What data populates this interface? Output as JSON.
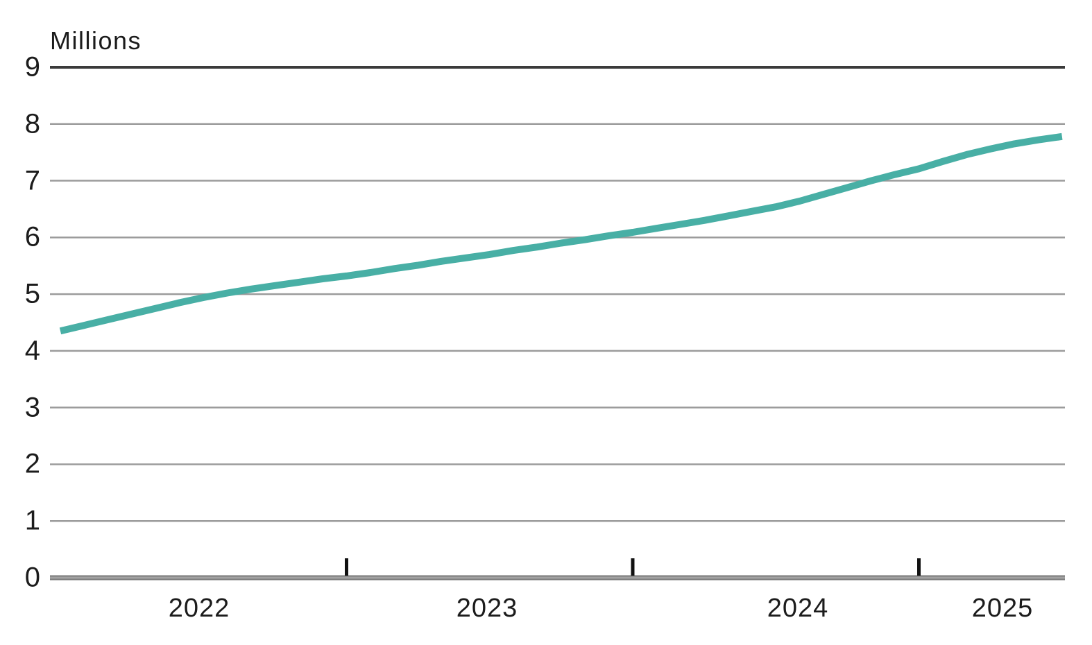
{
  "chart_data": {
    "type": "line",
    "ylabel": "Millions",
    "ylim": [
      0,
      9
    ],
    "y_ticks": [
      9,
      8,
      7,
      6,
      5,
      4,
      3,
      2,
      1,
      0
    ],
    "x_tick_labels": [
      "2022",
      "2023",
      "2024",
      "2025"
    ],
    "grid": true,
    "legend": "none",
    "series": [
      {
        "name": "value-millions",
        "color": "#48AFA5",
        "x": [
          "2022-01",
          "2022-02",
          "2022-03",
          "2022-04",
          "2022-05",
          "2022-06",
          "2022-07",
          "2022-08",
          "2022-09",
          "2022-10",
          "2022-11",
          "2022-12",
          "2023-01",
          "2023-02",
          "2023-03",
          "2023-04",
          "2023-05",
          "2023-06",
          "2023-07",
          "2023-08",
          "2023-09",
          "2023-10",
          "2023-11",
          "2023-12",
          "2024-01",
          "2024-02",
          "2024-03",
          "2024-04",
          "2024-05",
          "2024-06",
          "2024-07",
          "2024-08",
          "2024-09",
          "2024-10",
          "2024-11",
          "2024-12",
          "2025-01",
          "2025-02",
          "2025-03",
          "2025-04",
          "2025-05",
          "2025-06",
          "2025-07"
        ],
        "values": [
          4.35,
          4.45,
          4.55,
          4.65,
          4.75,
          4.85,
          4.94,
          5.02,
          5.09,
          5.15,
          5.21,
          5.27,
          5.32,
          5.38,
          5.45,
          5.51,
          5.58,
          5.64,
          5.7,
          5.77,
          5.83,
          5.9,
          5.96,
          6.03,
          6.09,
          6.16,
          6.23,
          6.3,
          6.38,
          6.46,
          6.54,
          6.64,
          6.76,
          6.88,
          7.0,
          7.11,
          7.21,
          7.34,
          7.46,
          7.56,
          7.65,
          7.72,
          7.78
        ]
      }
    ],
    "colors": {
      "line": "#48AFA5",
      "grid": "#9B9B9B",
      "top_line": "#3B3B3B",
      "axis_dark": "#6A6A6A",
      "axis_light": "#ABABAB",
      "tick": "#111111",
      "text": "#1C1C1C"
    }
  }
}
